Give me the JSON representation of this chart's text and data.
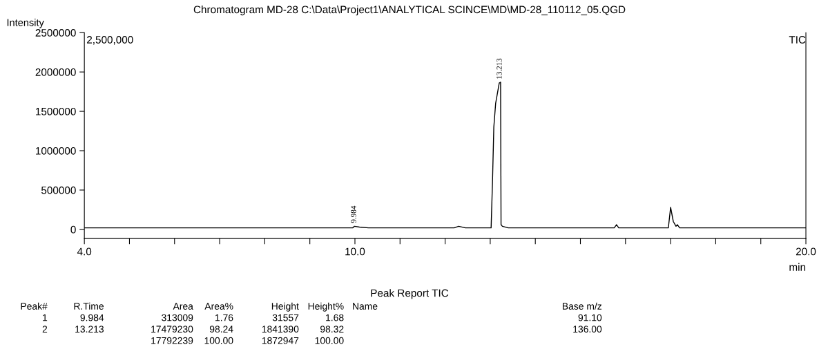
{
  "chart_data": {
    "type": "line",
    "title": "Chromatogram MD-28 C:\\Data\\Project1\\ANALYTICAL SCINCE\\MD\\MD-28_110112_05.QGD",
    "xlabel": "min",
    "ylabel": "Intensity",
    "x": [
      4.0,
      6.0,
      8.0,
      9.95,
      9.99,
      10.1,
      10.3,
      12.2,
      12.3,
      12.45,
      13.0,
      13.02,
      13.05,
      13.08,
      13.12,
      13.2,
      13.23,
      13.24,
      13.27,
      13.4,
      15.75,
      15.8,
      15.85,
      16.95,
      17.0,
      17.06,
      17.12,
      17.15,
      17.2,
      20.0
    ],
    "series": [
      {
        "color": "#000000",
        "values": [
          20000,
          20000,
          20000,
          20000,
          40000,
          30000,
          20000,
          20000,
          40000,
          20000,
          20000,
          20000,
          600000,
          1300000,
          1600000,
          1860000,
          1870000,
          60000,
          40000,
          20000,
          20000,
          60000,
          20000,
          20000,
          280000,
          100000,
          40000,
          60000,
          20000,
          20000
        ]
      }
    ],
    "xlim": [
      4.0,
      20.0
    ],
    "xticks": [
      {
        "value": 4,
        "label": "4.0"
      },
      {
        "value": 5,
        "label": null
      },
      {
        "value": 6,
        "label": null
      },
      {
        "value": 7,
        "label": null
      },
      {
        "value": 8,
        "label": null
      },
      {
        "value": 9,
        "label": null
      },
      {
        "value": 10,
        "label": "10.0"
      },
      {
        "value": 11,
        "label": null
      },
      {
        "value": 12,
        "label": null
      },
      {
        "value": 13,
        "label": null
      },
      {
        "value": 14,
        "label": null
      },
      {
        "value": 15,
        "label": null
      },
      {
        "value": 16,
        "label": null
      },
      {
        "value": 17,
        "label": null
      },
      {
        "value": 18,
        "label": null
      },
      {
        "value": 19,
        "label": null
      },
      {
        "value": 20,
        "label": "20.0"
      }
    ],
    "ylim": [
      -114000,
      2500000
    ],
    "yticks": [
      0,
      500000,
      1000000,
      1500000,
      2000000,
      2500000
    ],
    "grid": false,
    "legend": false,
    "marker": "none",
    "line_style": "solid",
    "annotations": [
      {
        "text": "9.984",
        "x": 9.984,
        "y": 45000
      },
      {
        "text": "13.213",
        "x": 13.213,
        "y": 1870000
      },
      "2,500,000",
      "TIC",
      "Peak Report TIC",
      "Peak#\tR.Time\tArea\tArea%\tHeight\tHeight%\tName\tBase m/z",
      "1\t9.984\t313009\t1.76\t31557\t1.68\t\t91.10",
      "2\t13.213\t17479230\t98.24\t1841390\t98.32\t\t136.00",
      "\t\t17792239\t100.00\t1872947\t100.00\t\t"
    ]
  }
}
